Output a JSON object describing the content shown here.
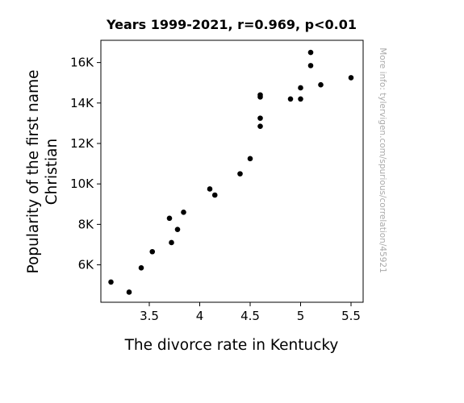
{
  "chart_data": {
    "type": "scatter",
    "title": "Years 1999-2021, r=0.969, p<0.01",
    "xlabel": "The divorce rate in Kentucky",
    "ylabel_lines": [
      "Popularity of the first name",
      "Christian"
    ],
    "watermark": "More info: tylervigen.com/spurious/correlation/45921",
    "xlim": [
      3.02,
      5.62
    ],
    "ylim": [
      4150,
      17100
    ],
    "x_ticks": [
      3.5,
      4.0,
      4.5,
      5.0,
      5.5
    ],
    "x_tick_labels": [
      "3.5",
      "4",
      "4.5",
      "5",
      "5.5"
    ],
    "y_ticks": [
      6000,
      8000,
      10000,
      12000,
      14000,
      16000
    ],
    "y_tick_labels": [
      "6K",
      "8K",
      "10K",
      "12K",
      "14K",
      "16K"
    ],
    "grid": false,
    "marker_color": "#000000",
    "points": [
      {
        "x": 3.12,
        "y": 5150
      },
      {
        "x": 3.3,
        "y": 4650
      },
      {
        "x": 3.42,
        "y": 5850
      },
      {
        "x": 3.53,
        "y": 6650
      },
      {
        "x": 3.7,
        "y": 8300
      },
      {
        "x": 3.72,
        "y": 7100
      },
      {
        "x": 3.78,
        "y": 7750
      },
      {
        "x": 3.84,
        "y": 8600
      },
      {
        "x": 4.1,
        "y": 9750
      },
      {
        "x": 4.15,
        "y": 9450
      },
      {
        "x": 4.4,
        "y": 10500
      },
      {
        "x": 4.5,
        "y": 11250
      },
      {
        "x": 4.6,
        "y": 12850
      },
      {
        "x": 4.6,
        "y": 13250
      },
      {
        "x": 4.6,
        "y": 14300
      },
      {
        "x": 4.6,
        "y": 14400
      },
      {
        "x": 4.9,
        "y": 14200
      },
      {
        "x": 5.0,
        "y": 14200
      },
      {
        "x": 5.0,
        "y": 14750
      },
      {
        "x": 5.1,
        "y": 15850
      },
      {
        "x": 5.1,
        "y": 16500
      },
      {
        "x": 5.2,
        "y": 14900
      },
      {
        "x": 5.5,
        "y": 15250
      }
    ]
  }
}
